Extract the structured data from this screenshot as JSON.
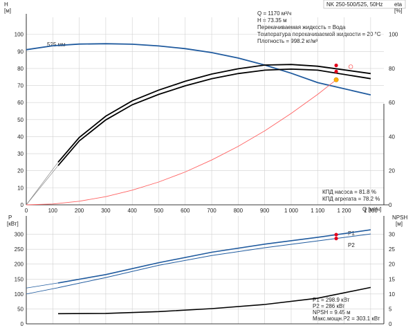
{
  "colors": {
    "head_curve": "#1f5a9e",
    "eff_curve": "#000000",
    "system_curve": "#ff6060",
    "power_curve": "#1f5a9e",
    "npsh_curve": "#000000",
    "duty_point": "#ffb000",
    "marker": "#e3001b"
  },
  "header": {
    "model": "NK 250-500/525, 50Hz"
  },
  "top_chart": {
    "info_lines": [
      "Q = 1170 м³/ч",
      "H = 73.35 м",
      "Перекачиваемая жидкость = Вода",
      "Температура перекачиваемой жидкости = 20 °C",
      "Плотность = 998.2 кг/м³"
    ],
    "eff_lines": [
      "КПД насоса = 81.8 %",
      "КПД агрегата = 78.2 %"
    ],
    "impeller_label": "525 мм",
    "left_axis": {
      "label": "H",
      "unit": "[м]"
    },
    "right_axis": {
      "label": "eta",
      "unit": "[%]"
    },
    "x_axis_label": "Q [м³/ч]"
  },
  "bottom_chart": {
    "info_lines": [
      "P1 = 298.9 кВт",
      "P2 = 286 кВт",
      "NPSH = 9.45 м",
      "Макс.мощн.P2 = 303.1 кВт"
    ],
    "left_axis": {
      "label": "P",
      "unit": "[кВт]"
    },
    "right_axis": {
      "label": "NPSH",
      "unit": "[м]"
    },
    "series_labels": {
      "p1": "P1",
      "p2": "P2"
    }
  },
  "chart_data": [
    {
      "type": "line",
      "title": "NK 250-500/525, 50Hz",
      "xlabel": "Q [м³/ч]",
      "ylabel": "H [м]",
      "y2label": "eta [%]",
      "xlim": [
        0,
        1350
      ],
      "ylim": [
        0,
        110
      ],
      "y2lim": [
        0,
        110
      ],
      "x_ticks": [
        0,
        100,
        200,
        300,
        400,
        500,
        600,
        700,
        800,
        900,
        1000,
        1100,
        1200,
        1300
      ],
      "x_tick_labels": [
        "0",
        "100",
        "200",
        "300",
        "400",
        "500",
        "600",
        "700",
        "800",
        "900",
        "1 000",
        "1 100",
        "1 200",
        "1 300"
      ],
      "y_ticks": [
        0,
        10,
        20,
        30,
        40,
        50,
        60,
        70,
        80,
        90,
        100
      ],
      "y2_ticks": [
        0,
        20,
        40,
        60,
        80,
        100
      ],
      "grid": true,
      "series": [
        {
          "name": "525 мм",
          "axis": "left",
          "x": [
            0,
            100,
            200,
            300,
            400,
            500,
            600,
            700,
            800,
            900,
            1000,
            1100,
            1170,
            1300
          ],
          "y": [
            91,
            93.3,
            94.3,
            94.5,
            94.2,
            93.2,
            91.6,
            89.3,
            86.1,
            82,
            77.2,
            71.7,
            73.35,
            64.5
          ]
        },
        {
          "axis": "right",
          "x": [
            120,
            200,
            300,
            400,
            500,
            600,
            700,
            800,
            900,
            1000,
            1100,
            1170,
            1300
          ],
          "y": [
            25,
            39.5,
            52,
            61,
            67.3,
            72.5,
            76.7,
            79.8,
            82,
            82.3,
            81.3,
            81.8,
            77
          ]
        },
        {
          "axis": "right",
          "x": [
            120,
            200,
            300,
            400,
            500,
            600,
            700,
            800,
            900,
            1000,
            1100,
            1170,
            1300
          ],
          "y": [
            23,
            37.5,
            49.8,
            58.7,
            64.8,
            69.8,
            74,
            77,
            79,
            79.6,
            79,
            78.2,
            74
          ]
        },
        {
          "axis": "left",
          "x": [
            0,
            100,
            200,
            300,
            400,
            500,
            600,
            700,
            800,
            900,
            1000,
            1100,
            1170
          ],
          "y": [
            0,
            0.5,
            2.1,
            4.8,
            8.6,
            13.4,
            19.3,
            26.3,
            34.3,
            43.4,
            53.6,
            64.8,
            73.35
          ]
        },
        {
          "axis": "left",
          "x": [
            0,
            100,
            200,
            300,
            400,
            500,
            600,
            700,
            800,
            900,
            1000,
            1100,
            1170
          ],
          "y": [
            0,
            0.5,
            2.1,
            4.8,
            8.6,
            13.4,
            19.3,
            26.3,
            34.3,
            43.4,
            53.6,
            64.8,
            73.35
          ]
        }
      ],
      "duty_point": {
        "x": 1170,
        "y": 73.35
      },
      "eff_markers": [
        {
          "x": 1170,
          "y": 81.8
        },
        {
          "x": 1170,
          "y": 78.2
        }
      ],
      "open_marker": {
        "x": 1225,
        "y": 81
      }
    },
    {
      "type": "line",
      "xlabel": "Q [м³/ч]",
      "ylabel": "P [кВт]",
      "y2label": "NPSH [м]",
      "xlim": [
        0,
        1350
      ],
      "ylim": [
        0,
        350
      ],
      "y2lim": [
        0,
        35
      ],
      "y_ticks": [
        0,
        50,
        100,
        150,
        200,
        250,
        300
      ],
      "y2_ticks": [
        0,
        5,
        10,
        15,
        20,
        25,
        30
      ],
      "grid": true,
      "series": [
        {
          "name": "P1",
          "axis": "left",
          "x": [
            0,
            120,
            300,
            500,
            700,
            900,
            1100,
            1170,
            1300
          ],
          "y": [
            120,
            137,
            165,
            205,
            240,
            267,
            290,
            298.9,
            315
          ]
        },
        {
          "name": "P2",
          "axis": "left",
          "x": [
            0,
            120,
            300,
            500,
            700,
            900,
            1100,
            1170,
            1300
          ],
          "y": [
            100,
            121,
            155,
            196,
            229,
            255,
            278,
            286,
            301
          ]
        },
        {
          "axis": "right",
          "x": [
            120,
            300,
            500,
            700,
            900,
            1100,
            1170,
            1300
          ],
          "y": [
            3.4,
            3.5,
            4.1,
            5.1,
            6.5,
            8.6,
            9.45,
            12.2
          ]
        }
      ],
      "markers": [
        {
          "x": 1170,
          "y": 298.9
        },
        {
          "x": 1170,
          "y": 286
        }
      ]
    }
  ]
}
